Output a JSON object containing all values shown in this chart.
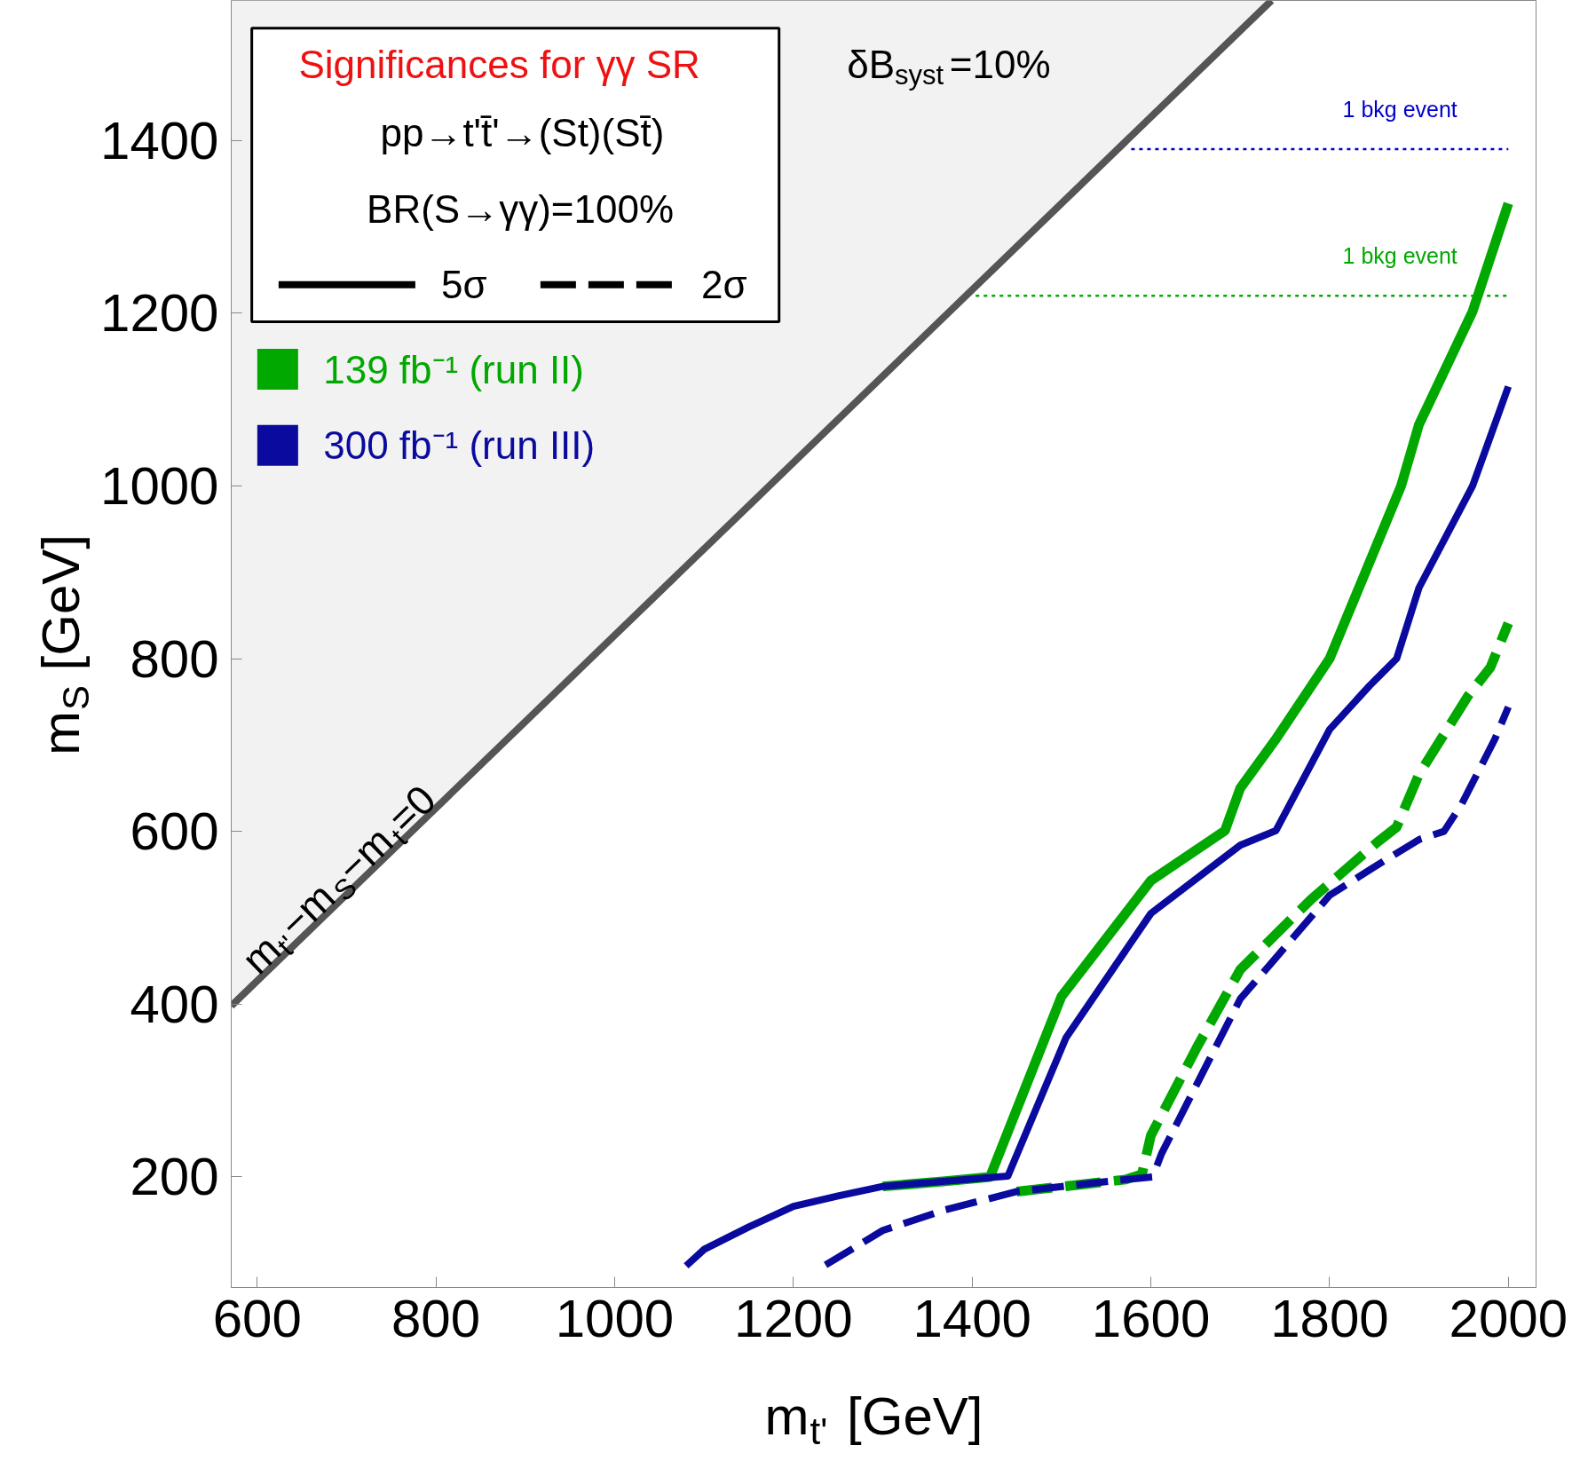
{
  "chart_data": {
    "type": "line",
    "title": "Significances for γγ SR",
    "xlabel": "m$_{t'}$ [GeV]",
    "ylabel": "m$_{S}$ [GeV]",
    "xlim": [
      571,
      2031
    ],
    "ylim": [
      72,
      1562
    ],
    "xticks": [
      600,
      800,
      1000,
      1200,
      1400,
      1600,
      1800,
      2000
    ],
    "yticks": [
      200,
      400,
      600,
      800,
      1000,
      1200,
      1400
    ],
    "grid": false,
    "legend": "top left",
    "annotations": [
      "pp→t't̄'→(St)(St̄)",
      "BR(S→γγ)=100%",
      "5σ",
      "2σ",
      "δB$_{syst}$=10%",
      "m$_{t'}$−m$_{S}$−m$_{t}$=0"
    ],
    "series": [
      {
        "name": "139 fb⁻¹ (run II)",
        "color": "#00a800",
        "line_style": "solid",
        "x": [
          1300,
          1370,
          1420,
          1500,
          1600,
          1683,
          1700,
          1740,
          1800,
          1880,
          1900,
          1960,
          2000
        ],
        "values": [
          189,
          195,
          200,
          409,
          543,
          601,
          650,
          707,
          800,
          1000,
          1071,
          1202,
          1327
        ]
      },
      {
        "name": "300 fb⁻¹ (run III)",
        "color": "#0a0a9e",
        "line_style": "solid",
        "x": [
          1080,
          1100,
          1150,
          1200,
          1250,
          1300,
          1370,
          1440,
          1505,
          1600,
          1700,
          1740,
          1800,
          1845,
          1875,
          1900,
          1960,
          2000
        ],
        "values": [
          97,
          116,
          142,
          166,
          178,
          189,
          195,
          201,
          361,
          505,
          584,
          601,
          718,
          769,
          800,
          882,
          1000,
          1115
        ]
      },
      {
        "color": "#00a800",
        "line_style": "dashed",
        "x": [
          1450,
          1572,
          1590,
          1600,
          1652,
          1700,
          1780,
          1854,
          1875,
          1900,
          1955,
          1980,
          2000
        ],
        "values": [
          183,
          197,
          203,
          248,
          351,
          440,
          522,
          588,
          605,
          666,
          757,
          790,
          841
        ]
      },
      {
        "color": "#0a0a9e",
        "line_style": "dashed",
        "x": [
          1236,
          1300,
          1370,
          1450,
          1572,
          1602,
          1612,
          1666,
          1700,
          1726,
          1800,
          1847,
          1901,
          1928,
          1948,
          1985,
          2000
        ],
        "values": [
          98,
          138,
          162,
          183,
          197,
          200,
          227,
          337,
          406,
          437,
          526,
          557,
          591,
          600,
          632,
          707,
          744
        ]
      },
      {
        "type": "line",
        "color": "#555555",
        "line_style": "solid",
        "x": [
          571,
          1150,
          1735
        ],
        "values": [
          398,
          977,
          1562
        ],
        "lower": [
          398,
          977,
          1562
        ],
        "upper": [
          1562,
          1562,
          1562
        ]
      },
      {
        "name": "1 bkg event",
        "color": "#0000cc",
        "line_style": "dotted",
        "x": [
          1578,
          2000
        ],
        "values": [
          1390,
          1390
        ]
      },
      {
        "name": "1 bkg event",
        "color": "#00a800",
        "line_style": "dotted",
        "x": [
          1404,
          2000
        ],
        "values": [
          1220,
          1220
        ]
      }
    ]
  }
}
